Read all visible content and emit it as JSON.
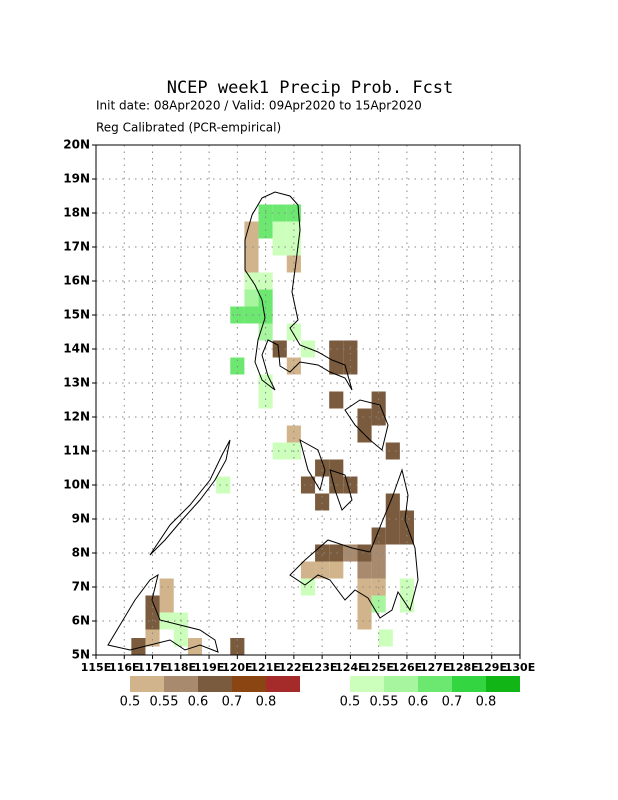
{
  "map_data": {
    "title": "NCEP week1 Precip Prob. Fcst",
    "subtitle": "Init date: 08Apr2020 / Valid: 09Apr2020 to 15Apr2020",
    "subtitle2": "Reg Calibrated (PCR-empirical)",
    "xlim": [
      115,
      130
    ],
    "ylim": [
      5,
      20
    ],
    "xticks": [
      {
        "value": 115,
        "label": "115E"
      },
      {
        "value": 116,
        "label": "116E"
      },
      {
        "value": 117,
        "label": "117E"
      },
      {
        "value": 118,
        "label": "118E"
      },
      {
        "value": 119,
        "label": "119E"
      },
      {
        "value": 120,
        "label": "120E"
      },
      {
        "value": 121,
        "label": "121E"
      },
      {
        "value": 122,
        "label": "122E"
      },
      {
        "value": 123,
        "label": "123E"
      },
      {
        "value": 124,
        "label": "124E"
      },
      {
        "value": 125,
        "label": "125E"
      },
      {
        "value": 126,
        "label": "126E"
      },
      {
        "value": 127,
        "label": "127E"
      },
      {
        "value": 128,
        "label": "128E"
      },
      {
        "value": 129,
        "label": "129E"
      },
      {
        "value": 130,
        "label": "130E"
      }
    ],
    "yticks": [
      {
        "value": 5,
        "label": "5N"
      },
      {
        "value": 6,
        "label": "6N"
      },
      {
        "value": 7,
        "label": "7N"
      },
      {
        "value": 8,
        "label": "8N"
      },
      {
        "value": 9,
        "label": "9N"
      },
      {
        "value": 10,
        "label": "10N"
      },
      {
        "value": 11,
        "label": "11N"
      },
      {
        "value": 12,
        "label": "12N"
      },
      {
        "value": 13,
        "label": "13N"
      },
      {
        "value": 14,
        "label": "14N"
      },
      {
        "value": 15,
        "label": "15N"
      },
      {
        "value": 16,
        "label": "16N"
      },
      {
        "value": 17,
        "label": "17N"
      },
      {
        "value": 18,
        "label": "18N"
      },
      {
        "value": 19,
        "label": "19N"
      },
      {
        "value": 20,
        "label": "20N"
      }
    ],
    "grid": true,
    "cell_size": 0.5,
    "dry_legend": {
      "values": [
        0.5,
        0.55,
        0.6,
        0.7,
        0.8
      ],
      "colors": [
        "#d2b48c",
        "#a88a6e",
        "#7b5b3e",
        "#8b4513",
        "#a52a2a"
      ]
    },
    "wet_legend": {
      "values": [
        0.5,
        0.55,
        0.6,
        0.7,
        0.8
      ],
      "colors": [
        "#ccffbb",
        "#a8f5a0",
        "#6ce870",
        "#33d640",
        "#11b515"
      ]
    },
    "wet_cells": [
      {
        "lon": 120.75,
        "lat": 17.75,
        "p": 0.6
      },
      {
        "lon": 121.25,
        "lat": 17.75,
        "p": 0.6
      },
      {
        "lon": 121.75,
        "lat": 17.75,
        "p": 0.6
      },
      {
        "lon": 120.75,
        "lat": 17.25,
        "p": 0.6
      },
      {
        "lon": 121.25,
        "lat": 17.25,
        "p": 0.5
      },
      {
        "lon": 121.75,
        "lat": 17.25,
        "p": 0.5
      },
      {
        "lon": 121.25,
        "lat": 16.75,
        "p": 0.5
      },
      {
        "lon": 121.75,
        "lat": 16.75,
        "p": 0.5
      },
      {
        "lon": 120.25,
        "lat": 15.75,
        "p": 0.5
      },
      {
        "lon": 120.75,
        "lat": 15.75,
        "p": 0.5
      },
      {
        "lon": 120.25,
        "lat": 15.25,
        "p": 0.55
      },
      {
        "lon": 120.75,
        "lat": 15.25,
        "p": 0.6
      },
      {
        "lon": 119.75,
        "lat": 14.75,
        "p": 0.6
      },
      {
        "lon": 120.25,
        "lat": 14.75,
        "p": 0.6
      },
      {
        "lon": 120.75,
        "lat": 14.75,
        "p": 0.6
      },
      {
        "lon": 120.75,
        "lat": 14.25,
        "p": 0.55
      },
      {
        "lon": 121.75,
        "lat": 14.25,
        "p": 0.5
      },
      {
        "lon": 122.25,
        "lat": 13.75,
        "p": 0.5
      },
      {
        "lon": 119.75,
        "lat": 13.25,
        "p": 0.6
      },
      {
        "lon": 120.75,
        "lat": 12.75,
        "p": 0.5
      },
      {
        "lon": 120.75,
        "lat": 12.25,
        "p": 0.5
      },
      {
        "lon": 121.25,
        "lat": 10.75,
        "p": 0.5
      },
      {
        "lon": 121.75,
        "lat": 10.75,
        "p": 0.5
      },
      {
        "lon": 119.25,
        "lat": 9.75,
        "p": 0.5
      },
      {
        "lon": 117.25,
        "lat": 5.75,
        "p": 0.5
      },
      {
        "lon": 117.75,
        "lat": 5.75,
        "p": 0.5
      },
      {
        "lon": 117.75,
        "lat": 5.25,
        "p": 0.5
      },
      {
        "lon": 122.25,
        "lat": 6.75,
        "p": 0.5
      },
      {
        "lon": 124.75,
        "lat": 6.25,
        "p": 0.55
      },
      {
        "lon": 125.75,
        "lat": 6.75,
        "p": 0.5
      },
      {
        "lon": 125.75,
        "lat": 6.25,
        "p": 0.5
      },
      {
        "lon": 125.0,
        "lat": 5.25,
        "p": 0.5
      }
    ],
    "dry_cells": [
      {
        "lon": 120.25,
        "lat": 17.25,
        "p": 0.5
      },
      {
        "lon": 120.25,
        "lat": 16.75,
        "p": 0.5
      },
      {
        "lon": 120.25,
        "lat": 16.25,
        "p": 0.5
      },
      {
        "lon": 121.75,
        "lat": 16.25,
        "p": 0.5
      },
      {
        "lon": 121.25,
        "lat": 13.75,
        "p": 0.6
      },
      {
        "lon": 121.75,
        "lat": 13.25,
        "p": 0.5
      },
      {
        "lon": 123.25,
        "lat": 13.75,
        "p": 0.6
      },
      {
        "lon": 123.75,
        "lat": 13.75,
        "p": 0.6
      },
      {
        "lon": 123.25,
        "lat": 13.25,
        "p": 0.6
      },
      {
        "lon": 123.75,
        "lat": 13.25,
        "p": 0.6
      },
      {
        "lon": 123.25,
        "lat": 12.25,
        "p": 0.6
      },
      {
        "lon": 124.75,
        "lat": 12.25,
        "p": 0.6
      },
      {
        "lon": 124.25,
        "lat": 11.75,
        "p": 0.6
      },
      {
        "lon": 124.75,
        "lat": 11.75,
        "p": 0.6
      },
      {
        "lon": 121.75,
        "lat": 11.25,
        "p": 0.5
      },
      {
        "lon": 121.75,
        "lat": 10.75,
        "p": 0.5
      },
      {
        "lon": 124.25,
        "lat": 11.25,
        "p": 0.6
      },
      {
        "lon": 125.25,
        "lat": 10.75,
        "p": 0.6
      },
      {
        "lon": 122.75,
        "lat": 10.25,
        "p": 0.6
      },
      {
        "lon": 123.25,
        "lat": 10.25,
        "p": 0.6
      },
      {
        "lon": 122.25,
        "lat": 9.75,
        "p": 0.6
      },
      {
        "lon": 123.25,
        "lat": 9.75,
        "p": 0.6
      },
      {
        "lon": 123.75,
        "lat": 9.75,
        "p": 0.6
      },
      {
        "lon": 122.75,
        "lat": 9.25,
        "p": 0.6
      },
      {
        "lon": 125.25,
        "lat": 9.25,
        "p": 0.6
      },
      {
        "lon": 125.25,
        "lat": 8.75,
        "p": 0.6
      },
      {
        "lon": 125.75,
        "lat": 8.75,
        "p": 0.6
      },
      {
        "lon": 124.75,
        "lat": 8.25,
        "p": 0.6
      },
      {
        "lon": 125.25,
        "lat": 8.25,
        "p": 0.6
      },
      {
        "lon": 125.75,
        "lat": 8.25,
        "p": 0.6
      },
      {
        "lon": 122.75,
        "lat": 7.75,
        "p": 0.6
      },
      {
        "lon": 123.25,
        "lat": 7.75,
        "p": 0.6
      },
      {
        "lon": 123.75,
        "lat": 7.75,
        "p": 0.55
      },
      {
        "lon": 124.25,
        "lat": 7.75,
        "p": 0.6
      },
      {
        "lon": 124.75,
        "lat": 7.75,
        "p": 0.55
      },
      {
        "lon": 122.25,
        "lat": 7.25,
        "p": 0.5
      },
      {
        "lon": 122.75,
        "lat": 7.25,
        "p": 0.5
      },
      {
        "lon": 123.25,
        "lat": 7.25,
        "p": 0.5
      },
      {
        "lon": 124.25,
        "lat": 7.25,
        "p": 0.55
      },
      {
        "lon": 124.75,
        "lat": 7.25,
        "p": 0.55
      },
      {
        "lon": 124.25,
        "lat": 6.75,
        "p": 0.5
      },
      {
        "lon": 124.75,
        "lat": 6.75,
        "p": 0.5
      },
      {
        "lon": 124.25,
        "lat": 6.25,
        "p": 0.5
      },
      {
        "lon": 124.25,
        "lat": 5.75,
        "p": 0.5
      },
      {
        "lon": 117.25,
        "lat": 6.75,
        "p": 0.5
      },
      {
        "lon": 117.25,
        "lat": 6.25,
        "p": 0.5
      },
      {
        "lon": 116.75,
        "lat": 6.25,
        "p": 0.6
      },
      {
        "lon": 116.75,
        "lat": 5.75,
        "p": 0.6
      },
      {
        "lon": 116.75,
        "lat": 5.25,
        "p": 0.5
      },
      {
        "lon": 116.25,
        "lat": 5.0,
        "p": 0.6
      },
      {
        "lon": 118.25,
        "lat": 5.0,
        "p": 0.5
      },
      {
        "lon": 119.75,
        "lat": 5.0,
        "p": 0.6
      }
    ]
  }
}
